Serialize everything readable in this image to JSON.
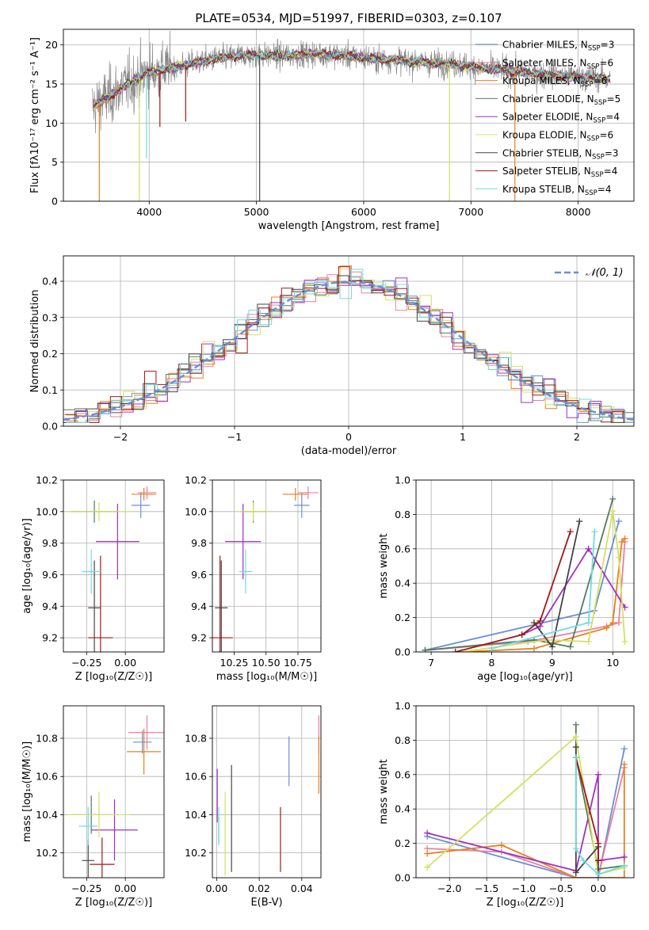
{
  "chart_data": [
    {
      "id": "spectrum",
      "type": "line",
      "title": "PLATE=0534, MJD=51997, FIBERID=0303, z=0.107",
      "xlabel": "wavelength [Angstrom, rest frame]",
      "ylabel": "Flux [fλ10⁻¹⁷ erg cm⁻² s⁻¹ A⁻¹]",
      "xlim": [
        3200,
        8520
      ],
      "ylim": [
        0,
        22
      ],
      "xticks": [
        4000,
        5000,
        6000,
        7000,
        8000
      ],
      "yticks": [
        0,
        5,
        10,
        15,
        20
      ],
      "legend_position": "top-right",
      "series": [
        {
          "name": "Chabrier MILES, N_SSP=3",
          "color": "#6a8fd4"
        },
        {
          "name": "Salpeter MILES, N_SSP=6",
          "color": "#e880a0"
        },
        {
          "name": "Kroupa MILES, N_SSP=6",
          "color": "#e8801c"
        },
        {
          "name": "Chabrier ELODIE, N_SSP=5",
          "color": "#557a60"
        },
        {
          "name": "Salpeter ELODIE, N_SSP=4",
          "color": "#a030c0"
        },
        {
          "name": "Kroupa ELODIE, N_SSP=6",
          "color": "#d4e060"
        },
        {
          "name": "Chabrier STELIB, N_SSP=3",
          "color": "#444444"
        },
        {
          "name": "Salpeter STELIB, N_SSP=4",
          "color": "#a01818"
        },
        {
          "name": "Kroupa STELIB, N_SSP=4",
          "color": "#70dce0"
        }
      ],
      "continuum": {
        "x": [
          3470,
          3600,
          3800,
          4000,
          4300,
          4600,
          4900,
          5200,
          5600,
          6000,
          6400,
          6800,
          7200,
          7600,
          8000,
          8300
        ],
        "y": [
          12,
          13.2,
          15.0,
          16.5,
          17.3,
          18.2,
          18.7,
          18.6,
          18.9,
          18.4,
          17.9,
          17.6,
          16.9,
          16.3,
          15.9,
          15.7
        ]
      },
      "dips": [
        {
          "x": 3535,
          "to": 0,
          "series": "Kroupa MILES, N_SSP=6"
        },
        {
          "x": 3908,
          "to": 0,
          "series": "Kroupa ELODIE, N_SSP=6"
        },
        {
          "x": 5030,
          "to": 0,
          "series": "Chabrier STELIB, N_SSP=3"
        },
        {
          "x": 6800,
          "to": 0,
          "series": "Kroupa ELODIE, N_SSP=6"
        },
        {
          "x": 7410,
          "to": 0,
          "series": "Kroupa MILES, N_SSP=6"
        },
        {
          "x": 3975,
          "to": 5.5,
          "series": "Kroupa STELIB, N_SSP=4"
        },
        {
          "x": 4100,
          "to": 9.5,
          "series": "Salpeter STELIB, N_SSP=4"
        },
        {
          "x": 4340,
          "to": 10.2,
          "series": "Salpeter STELIB, N_SSP=4"
        }
      ]
    },
    {
      "id": "residuals",
      "type": "line",
      "xlabel": "(data-model)/error",
      "ylabel": "Normed distribution",
      "xlim": [
        -2.5,
        2.5
      ],
      "ylim": [
        0,
        0.47
      ],
      "xticks": [
        -2,
        -1,
        0,
        1,
        2
      ],
      "yticks": [
        0.0,
        0.1,
        0.2,
        0.3,
        0.4
      ],
      "legend": "𝒩(0, 1)",
      "legend_position": "top-right",
      "reference": {
        "name": "N(0,1)",
        "color": "#6a8fd4",
        "mean": 0,
        "sigma": 1
      }
    },
    {
      "id": "z-age",
      "type": "scatter",
      "xlabel": "Z [log₁₀(Z/Z☉)]",
      "ylabel": "age  [log₁₀(age/yr)]",
      "xlim": [
        -0.4,
        0.25
      ],
      "ylim": [
        9.11,
        10.2
      ],
      "xticks": [
        -0.25,
        0.0
      ],
      "yticks": [
        9.2,
        9.4,
        9.6,
        9.8,
        10.0,
        10.2
      ],
      "points": [
        {
          "series": "Chabrier MILES, N_SSP=3",
          "x": 0.1,
          "xerr": 0.06,
          "y": 10.04,
          "yerr": 0.08
        },
        {
          "series": "Salpeter MILES, N_SSP=6",
          "x": 0.14,
          "xerr": 0.06,
          "y": 10.12,
          "yerr": 0.04
        },
        {
          "series": "Kroupa MILES, N_SSP=6",
          "x": 0.12,
          "xerr": 0.08,
          "y": 10.11,
          "yerr": 0.04
        },
        {
          "series": "Chabrier ELODIE, N_SSP=5",
          "x": -0.2,
          "xerr": 0.15,
          "y": 10.0,
          "yerr": 0.07
        },
        {
          "series": "Salpeter ELODIE, N_SSP=4",
          "x": -0.05,
          "xerr": 0.14,
          "y": 9.81,
          "yerr": 0.24
        },
        {
          "series": "Kroupa ELODIE, N_SSP=6",
          "x": -0.17,
          "xerr": 0.2,
          "y": 10.0,
          "yerr": 0.06
        },
        {
          "series": "Chabrier STELIB, N_SSP=3",
          "x": -0.2,
          "xerr": 0.04,
          "y": 9.39,
          "yerr": 0.3
        },
        {
          "series": "Salpeter STELIB, N_SSP=4",
          "x": -0.16,
          "xerr": 0.08,
          "y": 9.2,
          "yerr": 0.52
        },
        {
          "series": "Kroupa STELIB, N_SSP=4",
          "x": -0.22,
          "xerr": 0.06,
          "y": 9.62,
          "yerr": 0.14
        }
      ]
    },
    {
      "id": "mass-age",
      "type": "scatter",
      "xlabel": "mass [log₁₀(M/M☉)]",
      "ylabel": "",
      "xlim": [
        10.08,
        10.93
      ],
      "ylim": [
        9.11,
        10.2
      ],
      "xticks": [
        10.25,
        10.5,
        10.75
      ],
      "yticks": [
        9.2,
        9.4,
        9.6,
        9.8,
        10.0,
        10.2
      ],
      "points": [
        {
          "series": "Chabrier MILES, N_SSP=3",
          "x": 10.78,
          "xerr": 0.06,
          "y": 10.04,
          "yerr": 0.08
        },
        {
          "series": "Salpeter MILES, N_SSP=6",
          "x": 10.83,
          "xerr": 0.08,
          "y": 10.12,
          "yerr": 0.04
        },
        {
          "series": "Kroupa MILES, N_SSP=6",
          "x": 10.73,
          "xerr": 0.1,
          "y": 10.11,
          "yerr": 0.04
        },
        {
          "series": "Chabrier ELODIE, N_SSP=5",
          "x": 10.4,
          "xerr": 0.1,
          "y": 10.0,
          "yerr": 0.07
        },
        {
          "series": "Salpeter ELODIE, N_SSP=4",
          "x": 10.32,
          "xerr": 0.14,
          "y": 9.81,
          "yerr": 0.24
        },
        {
          "series": "Kroupa ELODIE, N_SSP=6",
          "x": 10.4,
          "xerr": 0.12,
          "y": 10.0,
          "yerr": 0.06
        },
        {
          "series": "Chabrier STELIB, N_SSP=3",
          "x": 10.15,
          "xerr": 0.05,
          "y": 9.39,
          "yerr": 0.3
        },
        {
          "series": "Salpeter STELIB, N_SSP=4",
          "x": 10.14,
          "xerr": 0.1,
          "y": 9.2,
          "yerr": 0.52
        },
        {
          "series": "Kroupa STELIB, N_SSP=4",
          "x": 10.34,
          "xerr": 0.05,
          "y": 9.62,
          "yerr": 0.14
        }
      ]
    },
    {
      "id": "age-weight",
      "type": "line",
      "xlabel": "age  [log₁₀(age/yr)]",
      "ylabel": "mass weight",
      "xlim": [
        6.75,
        10.35
      ],
      "ylim": [
        0,
        1.0
      ],
      "xticks": [
        7,
        8,
        9,
        10
      ],
      "yticks": [
        0.0,
        0.2,
        0.4,
        0.6,
        0.8,
        1.0
      ],
      "series": [
        {
          "name": "Chabrier MILES, N_SSP=3",
          "x": [
            6.9,
            9.7,
            10.1
          ],
          "y": [
            0.01,
            0.24,
            0.76
          ]
        },
        {
          "name": "Salpeter MILES, N_SSP=6",
          "x": [
            6.9,
            8.6,
            9.9,
            10.1,
            10.2
          ],
          "y": [
            0.01,
            0.06,
            0.15,
            0.17,
            0.64
          ]
        },
        {
          "name": "Kroupa MILES, N_SSP=6",
          "x": [
            7.5,
            8.7,
            9.9,
            10.0,
            10.15,
            10.2
          ],
          "y": [
            0.0,
            0.02,
            0.14,
            0.17,
            0.64,
            0.66
          ]
        },
        {
          "name": "Chabrier ELODIE, N_SSP=5",
          "x": [
            6.9,
            8.7,
            9.3,
            10.0
          ],
          "y": [
            0.01,
            0.07,
            0.03,
            0.89
          ]
        },
        {
          "name": "Salpeter ELODIE, N_SSP=4",
          "x": [
            8.5,
            8.8,
            9.6,
            10.2
          ],
          "y": [
            0.1,
            0.15,
            0.6,
            0.26
          ]
        },
        {
          "name": "Kroupa ELODIE, N_SSP=6",
          "x": [
            7.5,
            8.9,
            9.6,
            10.0,
            10.1,
            10.2
          ],
          "y": [
            0.0,
            0.07,
            0.06,
            0.82,
            0.55,
            0.06
          ]
        },
        {
          "name": "Chabrier STELIB, N_SSP=3",
          "x": [
            8.7,
            9.0,
            9.45
          ],
          "y": [
            0.17,
            0.03,
            0.76
          ]
        },
        {
          "name": "Salpeter STELIB, N_SSP=4",
          "x": [
            7.4,
            8.5,
            8.8,
            9.3
          ],
          "y": [
            0.0,
            0.1,
            0.18,
            0.7
          ]
        },
        {
          "name": "Kroupa STELIB, N_SSP=4",
          "x": [
            8.0,
            9.6,
            9.7
          ],
          "y": [
            0.02,
            0.17,
            0.7
          ]
        }
      ]
    },
    {
      "id": "z-mass",
      "type": "scatter",
      "xlabel": "Z [log₁₀(Z/Z☉)]",
      "ylabel": "mass [log₁₀(M/M☉)]",
      "xlim": [
        -0.4,
        0.25
      ],
      "ylim": [
        10.07,
        10.97
      ],
      "xticks": [
        -0.25,
        0.0
      ],
      "yticks": [
        10.2,
        10.4,
        10.6,
        10.8
      ],
      "points": [
        {
          "series": "Chabrier MILES, N_SSP=3",
          "x": 0.11,
          "xerr": 0.06,
          "y": 10.78,
          "yerr": 0.06
        },
        {
          "series": "Salpeter MILES, N_SSP=6",
          "x": 0.14,
          "xerr": 0.12,
          "y": 10.83,
          "yerr": 0.09
        },
        {
          "series": "Kroupa MILES, N_SSP=6",
          "x": 0.12,
          "xerr": 0.11,
          "y": 10.73,
          "yerr": 0.12
        },
        {
          "series": "Chabrier ELODIE, N_SSP=5",
          "x": -0.22,
          "xerr": 0.13,
          "y": 10.4,
          "yerr": 0.1
        },
        {
          "series": "Salpeter ELODIE, N_SSP=4",
          "x": -0.07,
          "xerr": 0.15,
          "y": 10.32,
          "yerr": 0.16
        },
        {
          "series": "Kroupa ELODIE, N_SSP=6",
          "x": -0.17,
          "xerr": 0.2,
          "y": 10.4,
          "yerr": 0.12
        },
        {
          "series": "Chabrier STELIB, N_SSP=3",
          "x": -0.24,
          "xerr": 0.04,
          "y": 10.16,
          "yerr": 0.11
        },
        {
          "series": "Salpeter STELIB, N_SSP=4",
          "x": -0.15,
          "xerr": 0.08,
          "y": 10.14,
          "yerr": 0.14
        },
        {
          "series": "Kroupa STELIB, N_SSP=4",
          "x": -0.24,
          "xerr": 0.06,
          "y": 10.34,
          "yerr": 0.1
        }
      ]
    },
    {
      "id": "ebv-mass",
      "type": "scatter",
      "xlabel": "E(B-V)",
      "ylabel": "",
      "xlim": [
        -0.002,
        0.049
      ],
      "ylim": [
        10.07,
        10.97
      ],
      "xticks": [
        0.0,
        0.02,
        0.04
      ],
      "xticklabels": [
        "0.00",
        "0.02",
        "0.04"
      ],
      "yticks": [
        10.2,
        10.4,
        10.6,
        10.8
      ],
      "points": [
        {
          "series": "Chabrier MILES, N_SSP=3",
          "x": 0.034,
          "y": 10.68,
          "yerr": 0.13
        },
        {
          "series": "Salpeter MILES, N_SSP=6",
          "x": 0.048,
          "y": 10.82,
          "yerr": 0.1
        },
        {
          "series": "Kroupa MILES, N_SSP=6",
          "x": 0.048,
          "y": 10.66,
          "yerr": 0.15
        },
        {
          "series": "Chabrier ELODIE, N_SSP=5",
          "x": 0.001,
          "y": 10.32,
          "yerr": 0.07
        },
        {
          "series": "Salpeter ELODIE, N_SSP=4",
          "x": 0.0003,
          "y": 10.5,
          "yerr": 0.14
        },
        {
          "series": "Kroupa ELODIE, N_SSP=6",
          "x": 0.004,
          "y": 10.3,
          "yerr": 0.22
        },
        {
          "series": "Chabrier STELIB, N_SSP=3",
          "x": 0.007,
          "y": 10.38,
          "yerr": 0.28
        },
        {
          "series": "Salpeter STELIB, N_SSP=4",
          "x": 0.03,
          "y": 10.27,
          "yerr": 0.17
        },
        {
          "series": "Kroupa STELIB, N_SSP=4",
          "x": 0.001,
          "y": 10.34,
          "yerr": 0.1
        }
      ]
    },
    {
      "id": "z-weight",
      "type": "line",
      "xlabel": "Z [log₁₀(Z/Z☉)]",
      "ylabel": "mass weight",
      "xlim": [
        -2.45,
        0.48
      ],
      "ylim": [
        0,
        1.0
      ],
      "xticks": [
        -2.0,
        -1.5,
        -1.0,
        -0.5,
        0.0
      ],
      "yticks": [
        0.0,
        0.2,
        0.4,
        0.6,
        0.8,
        1.0
      ],
      "series": [
        {
          "name": "Chabrier MILES, N_SSP=3",
          "x": [
            -2.3,
            -0.3,
            0.0,
            0.35
          ],
          "y": [
            0.24,
            0.0,
            0.0,
            0.75
          ]
        },
        {
          "name": "Salpeter MILES, N_SSP=6",
          "x": [
            -2.3,
            -1.3,
            -0.3,
            0.0,
            0.05,
            0.35
          ],
          "y": [
            0.17,
            0.15,
            0.0,
            0.0,
            0.1,
            0.64
          ]
        },
        {
          "name": "Kroupa MILES, N_SSP=6",
          "x": [
            -2.3,
            -1.3,
            -0.3,
            0.0,
            0.35,
            0.35
          ],
          "y": [
            0.14,
            0.19,
            0.0,
            0.0,
            0.0,
            0.66
          ]
        },
        {
          "name": "Chabrier ELODIE, N_SSP=5",
          "x": [
            -0.3,
            -0.3,
            0.0,
            0.35
          ],
          "y": [
            0.89,
            0.7,
            0.05,
            0.07
          ]
        },
        {
          "name": "Salpeter ELODIE, N_SSP=4",
          "x": [
            -2.3,
            -0.3,
            0.0,
            0.0,
            0.35
          ],
          "y": [
            0.26,
            0.04,
            0.6,
            0.1,
            0.12
          ]
        },
        {
          "name": "Kroupa ELODIE, N_SSP=6",
          "x": [
            -2.3,
            -0.3,
            0.0,
            0.35
          ],
          "y": [
            0.06,
            0.82,
            0.02,
            0.06
          ]
        },
        {
          "name": "Chabrier STELIB, N_SSP=3",
          "x": [
            -0.3,
            -0.3,
            0.0,
            0.0
          ],
          "y": [
            0.76,
            0.03,
            0.18,
            0.0
          ]
        },
        {
          "name": "Salpeter STELIB, N_SSP=4",
          "x": [
            -0.3,
            0.0,
            0.0
          ],
          "y": [
            0.7,
            0.2,
            0.1
          ]
        },
        {
          "name": "Kroupa STELIB, N_SSP=4",
          "x": [
            -0.3,
            -0.3,
            -0.2,
            0.0,
            0.35
          ],
          "y": [
            0.7,
            0.17,
            0.1,
            0.02,
            0.07
          ]
        }
      ]
    }
  ]
}
